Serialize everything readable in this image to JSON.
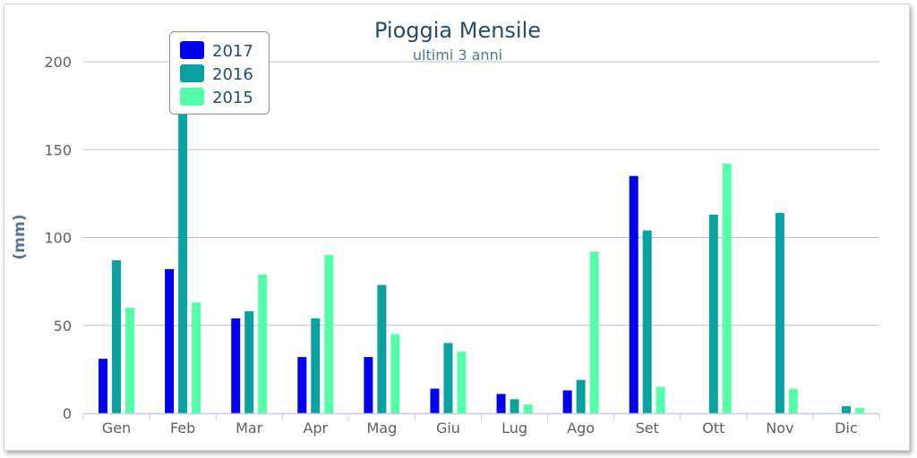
{
  "chart_data": {
    "type": "bar",
    "title": "Pioggia Mensile",
    "subtitle": "ultimi 3 anni",
    "xlabel": "",
    "ylabel": "(mm)",
    "ylim": [
      0,
      200
    ],
    "yticks": [
      0,
      50,
      100,
      150,
      200
    ],
    "grid": true,
    "legend": "top-left",
    "categories": [
      "Gen",
      "Feb",
      "Mar",
      "Apr",
      "Mag",
      "Giu",
      "Lug",
      "Ago",
      "Set",
      "Ott",
      "Nov",
      "Dic"
    ],
    "series": [
      {
        "name": "2017",
        "color": "#0000ee",
        "values": [
          31,
          82,
          54,
          32,
          32,
          14,
          11,
          13,
          135,
          0,
          0,
          0
        ]
      },
      {
        "name": "2016",
        "color": "#0aa1a1",
        "values": [
          87,
          173,
          58,
          54,
          73,
          40,
          8,
          19,
          104,
          113,
          114,
          4
        ]
      },
      {
        "name": "2015",
        "color": "#55ffaa",
        "values": [
          60,
          63,
          79,
          90,
          45,
          35,
          5,
          92,
          15,
          142,
          14,
          3
        ]
      }
    ]
  }
}
